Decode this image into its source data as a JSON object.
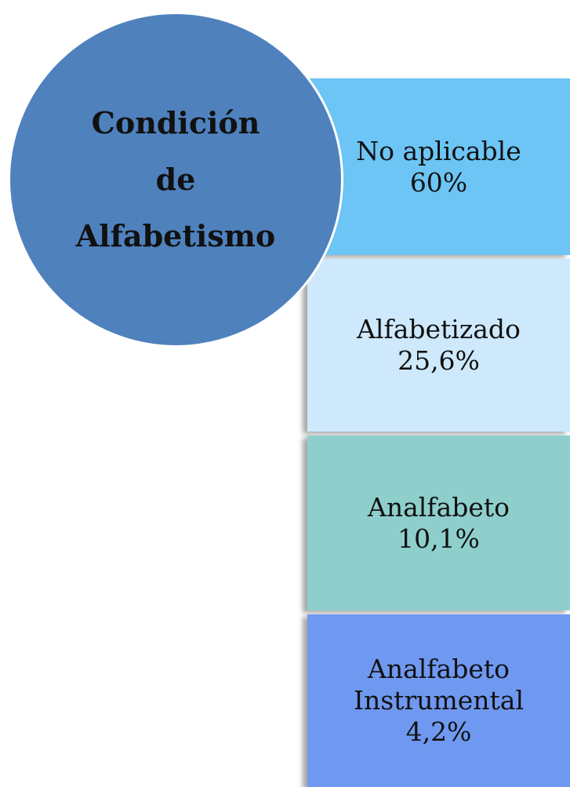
{
  "title_lines": [
    "Condición",
    "de",
    "Alfabetismo"
  ],
  "items": [
    {
      "label": "No aplicable",
      "value": "60%"
    },
    {
      "label": "Alfabetizado",
      "value": "25,6%"
    },
    {
      "label": "Analfabeto",
      "value": "10,1%"
    },
    {
      "label": "Analfabeto Instrumental",
      "value": "4,2%"
    }
  ]
}
